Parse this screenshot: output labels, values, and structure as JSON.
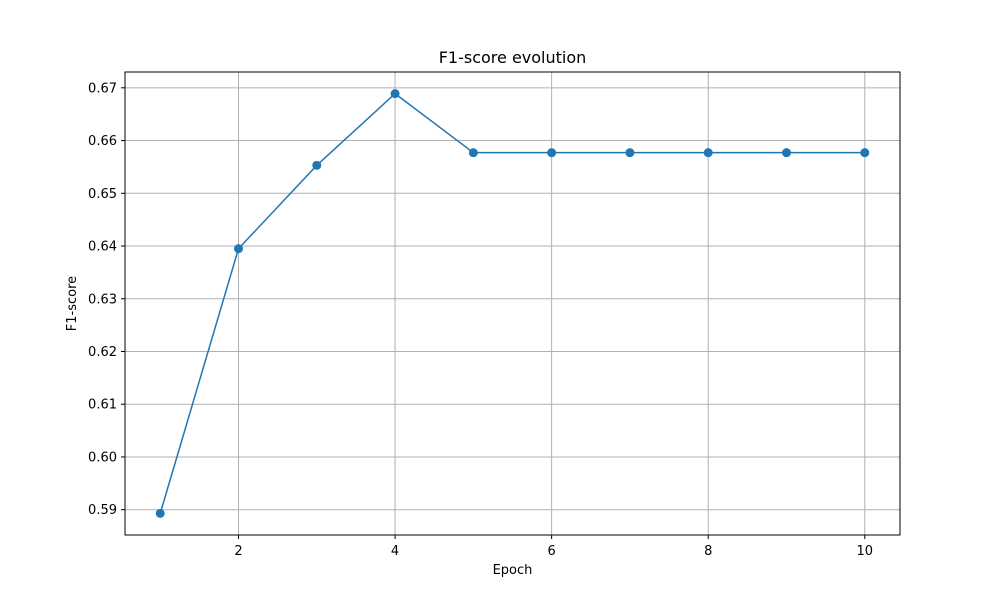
{
  "chart_data": {
    "type": "line",
    "title": "F1-score evolution",
    "xlabel": "Epoch",
    "ylabel": "F1-score",
    "x": [
      1,
      2,
      3,
      4,
      5,
      6,
      7,
      8,
      9,
      10
    ],
    "series": [
      {
        "values": [
          0.5893,
          0.6395,
          0.6553,
          0.6689,
          0.6577,
          0.6577,
          0.6577,
          0.6577,
          0.6577,
          0.6577
        ]
      }
    ],
    "xlim": [
      0.55,
      10.45
    ],
    "ylim": [
      0.5852,
      0.673
    ],
    "xticks": [
      2,
      4,
      6,
      8,
      10
    ],
    "yticks": [
      0.59,
      0.6,
      0.61,
      0.62,
      0.63,
      0.64,
      0.65,
      0.66,
      0.67
    ],
    "ytick_labels": [
      "0.59",
      "0.60",
      "0.61",
      "0.62",
      "0.63",
      "0.64",
      "0.65",
      "0.66",
      "0.67"
    ],
    "grid": true,
    "marker": "circle",
    "color": "#1f77b4"
  }
}
